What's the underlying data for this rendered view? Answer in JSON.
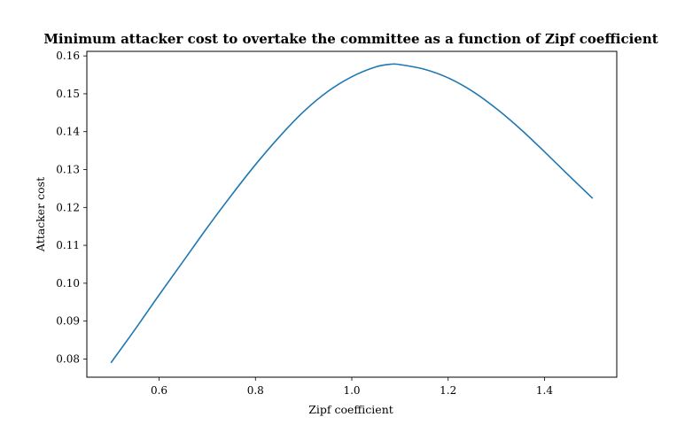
{
  "chart_data": {
    "type": "line",
    "title": "Minimum attacker cost to overtake the committee as a function of Zipf coefficient",
    "xlabel": "Zipf coefficient",
    "ylabel": "Attacker cost",
    "xlim": [
      0.45,
      1.55
    ],
    "ylim": [
      0.0752,
      0.1612
    ],
    "xticks": [
      0.6,
      0.8,
      1.0,
      1.2,
      1.4
    ],
    "xtick_labels": [
      "0.6",
      "0.8",
      "1.0",
      "1.2",
      "1.4"
    ],
    "yticks": [
      0.08,
      0.09,
      0.1,
      0.11,
      0.12,
      0.13,
      0.14,
      0.15,
      0.16
    ],
    "ytick_labels": [
      "0.08",
      "0.09",
      "0.10",
      "0.11",
      "0.12",
      "0.13",
      "0.14",
      "0.15",
      "0.16"
    ],
    "grid": false,
    "series": [
      {
        "color": "#1f77b4",
        "x": [
          0.5,
          0.55,
          0.6,
          0.65,
          0.7,
          0.75,
          0.8,
          0.85,
          0.9,
          0.95,
          1.0,
          1.05,
          1.08,
          1.1,
          1.15,
          1.2,
          1.25,
          1.3,
          1.35,
          1.4,
          1.45,
          1.5
        ],
        "y": [
          0.079,
          0.0878,
          0.0969,
          0.1058,
          0.1147,
          0.1232,
          0.1313,
          0.1387,
          0.1453,
          0.1506,
          0.1545,
          0.1571,
          0.1578,
          0.1577,
          0.1565,
          0.1542,
          0.1507,
          0.1461,
          0.1407,
          0.1347,
          0.1285,
          0.1224
        ]
      }
    ]
  }
}
